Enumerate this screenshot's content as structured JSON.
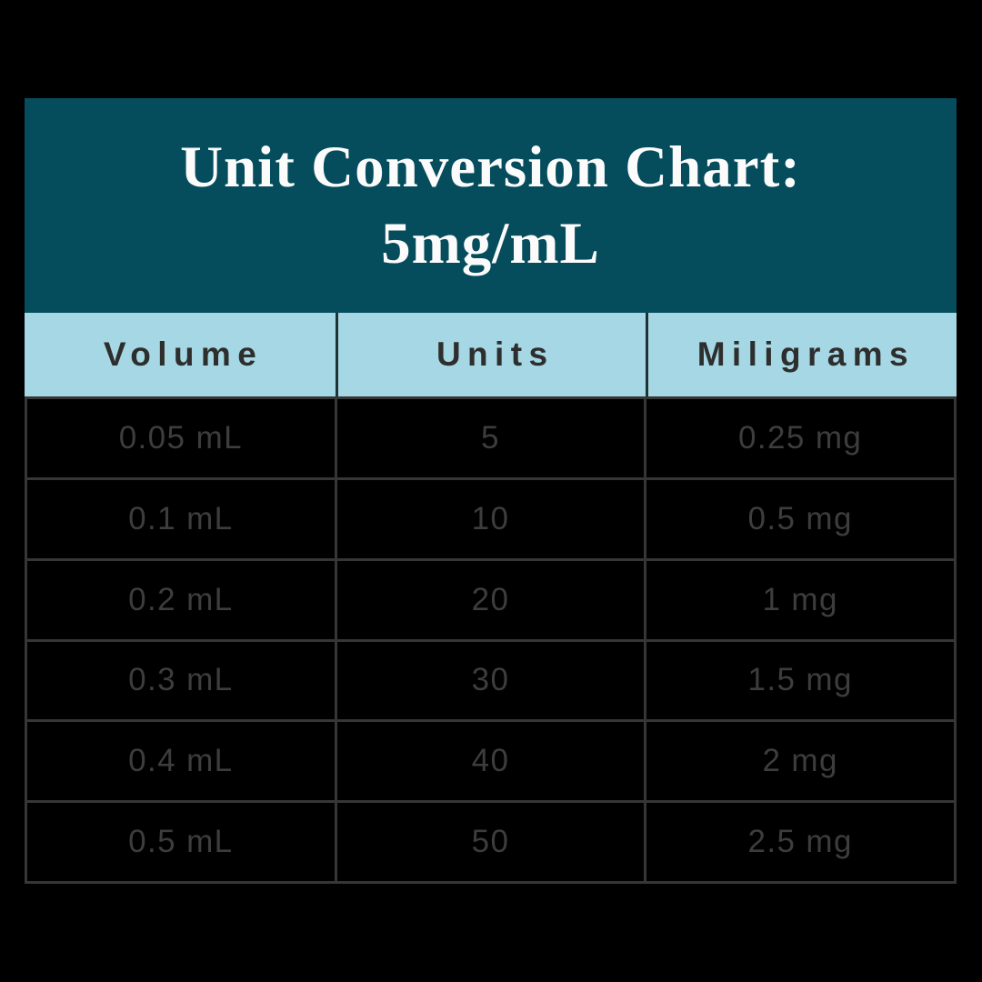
{
  "page": {
    "background_color": "#000000"
  },
  "card": {
    "title_line1": "Unit Conversion Chart:",
    "title_line2": "5mg/mL",
    "concentration": "5mg/mL",
    "colors": {
      "title_band_bg": "#054C5C",
      "title_text": "#FBFBFB",
      "header_row_bg": "#A5D8E4",
      "header_text": "#2E2E2E",
      "header_divider": "#1E3236",
      "body_cell_bg": "#000000",
      "body_text": "#3D3D3D",
      "body_border": "#363636"
    }
  },
  "table": {
    "columns": [
      "Volume",
      "Units",
      "Miligrams"
    ],
    "rows": [
      [
        "0.05 mL",
        "5",
        "0.25 mg"
      ],
      [
        "0.1 mL",
        "10",
        "0.5 mg"
      ],
      [
        "0.2 mL",
        "20",
        "1 mg"
      ],
      [
        "0.3 mL",
        "30",
        "1.5 mg"
      ],
      [
        "0.4 mL",
        "40",
        "2 mg"
      ],
      [
        "0.5 mL",
        "50",
        "2.5 mg"
      ]
    ]
  },
  "chart_data": {
    "type": "table",
    "title": "Unit Conversion Chart: 5mg/mL",
    "columns": [
      "Volume",
      "Units",
      "Miligrams"
    ],
    "rows": [
      {
        "volume_ml": 0.05,
        "units": 5,
        "milligrams": 0.25
      },
      {
        "volume_ml": 0.1,
        "units": 10,
        "milligrams": 0.5
      },
      {
        "volume_ml": 0.2,
        "units": 20,
        "milligrams": 1
      },
      {
        "volume_ml": 0.3,
        "units": 30,
        "milligrams": 1.5
      },
      {
        "volume_ml": 0.4,
        "units": 40,
        "milligrams": 2
      },
      {
        "volume_ml": 0.5,
        "units": 50,
        "milligrams": 2.5
      }
    ],
    "concentration_mg_per_ml": 5
  }
}
